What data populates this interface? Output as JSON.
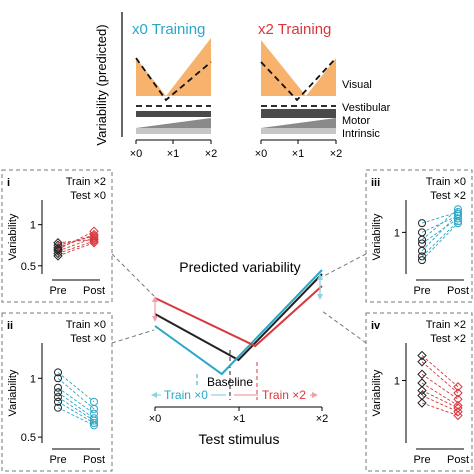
{
  "colors": {
    "cyan": "#2aa7c6",
    "red": "#d8373d",
    "orange": "#f7b36e",
    "black": "#222222",
    "box_border": "#777777",
    "grey_dark": "#4a4a4a",
    "grey_mid": "#8a8a8a",
    "grey_light": "#c6c6c6"
  },
  "top": {
    "ylabel": "Variability (predicted)",
    "titles": [
      "x0 Training",
      "x2 Training"
    ],
    "layer_labels": [
      "Visual",
      "Vestibular",
      "Motor",
      "Intrinsic"
    ],
    "ticks": [
      "×0",
      "×1",
      "×2"
    ]
  },
  "center": {
    "title": "Predicted variability",
    "baseline_label": "Baseline",
    "train_x0_label": "Train ×0",
    "train_x2_label": "Train ×2",
    "xlabel": "Test stimulus",
    "ticks": [
      "×0",
      "×1",
      "×2"
    ]
  },
  "panels": [
    {
      "id": "i",
      "line1": "Train ×2",
      "line2": "Test ×0",
      "ylabel": "Variability",
      "ytick_top": "1",
      "ytick_bottom": "0.5",
      "x": [
        "Pre",
        "Post"
      ]
    },
    {
      "id": "ii",
      "line1": "Train ×0",
      "line2": "Test ×0",
      "ylabel": "Variability",
      "ytick_top": "1",
      "ytick_bottom": "0.5",
      "x": [
        "Pre",
        "Post"
      ]
    },
    {
      "id": "iii",
      "line1": "Train ×0",
      "line2": "Test ×2",
      "ylabel": "Variability",
      "ytick_top": "1",
      "ytick_bottom": "",
      "x": [
        "Pre",
        "Post"
      ]
    },
    {
      "id": "iv",
      "line1": "Train ×2",
      "line2": "Test ×2",
      "ylabel": "Variability",
      "ytick_top": "1",
      "ytick_bottom": "",
      "x": [
        "Pre",
        "Post"
      ]
    }
  ],
  "chart_data": [
    {
      "type": "line",
      "title": "Predicted variability",
      "xlabel": "Test stimulus",
      "categories": [
        "×0",
        "×1",
        "×2"
      ],
      "series": [
        {
          "name": "Baseline",
          "x": [
            0,
            1,
            2
          ],
          "y": [
            0.78,
            0.55,
            0.98
          ]
        },
        {
          "name": "Train ×0",
          "x": [
            0,
            0.8,
            2
          ],
          "y": [
            0.72,
            0.48,
            1.0
          ]
        },
        {
          "name": "Train ×2",
          "x": [
            0,
            1.2,
            2
          ],
          "y": [
            0.86,
            0.62,
            0.92
          ]
        }
      ]
    },
    {
      "type": "line",
      "panel": "i",
      "categories": [
        "Pre",
        "Post"
      ],
      "ylim": [
        0.4,
        1.3
      ],
      "series": [
        {
          "values": [
            0.72,
            0.88
          ]
        },
        {
          "values": [
            0.68,
            0.84
          ]
        },
        {
          "values": [
            0.75,
            0.86
          ]
        },
        {
          "values": [
            0.65,
            0.8
          ]
        },
        {
          "values": [
            0.7,
            0.92
          ]
        },
        {
          "values": [
            0.78,
            0.82
          ]
        },
        {
          "values": [
            0.62,
            0.78
          ]
        }
      ]
    },
    {
      "type": "line",
      "panel": "ii",
      "categories": [
        "Pre",
        "Post"
      ],
      "ylim": [
        0.45,
        1.3
      ],
      "series": [
        {
          "values": [
            1.05,
            0.8
          ]
        },
        {
          "values": [
            1.0,
            0.74
          ]
        },
        {
          "values": [
            0.92,
            0.7
          ]
        },
        {
          "values": [
            0.88,
            0.66
          ]
        },
        {
          "values": [
            0.84,
            0.64
          ]
        },
        {
          "values": [
            0.8,
            0.62
          ]
        },
        {
          "values": [
            0.75,
            0.6
          ]
        }
      ]
    },
    {
      "type": "line",
      "panel": "iii",
      "categories": [
        "Pre",
        "Post"
      ],
      "ylim": [
        0.55,
        1.35
      ],
      "series": [
        {
          "values": [
            1.1,
            1.22
          ]
        },
        {
          "values": [
            1.0,
            1.18
          ]
        },
        {
          "values": [
            0.88,
            1.15
          ]
        },
        {
          "values": [
            0.8,
            1.2
          ]
        },
        {
          "values": [
            0.74,
            1.12
          ]
        },
        {
          "values": [
            0.7,
            1.1
          ]
        },
        {
          "values": [
            0.92,
            1.25
          ]
        }
      ]
    },
    {
      "type": "line",
      "panel": "iv",
      "categories": [
        "Pre",
        "Post"
      ],
      "ylim": [
        0.5,
        1.3
      ],
      "series": [
        {
          "values": [
            1.2,
            0.95
          ]
        },
        {
          "values": [
            1.15,
            0.9
          ]
        },
        {
          "values": [
            1.05,
            0.85
          ]
        },
        {
          "values": [
            0.98,
            0.8
          ]
        },
        {
          "values": [
            0.92,
            0.78
          ]
        },
        {
          "values": [
            0.88,
            0.75
          ]
        },
        {
          "values": [
            0.82,
            0.72
          ]
        }
      ]
    }
  ]
}
